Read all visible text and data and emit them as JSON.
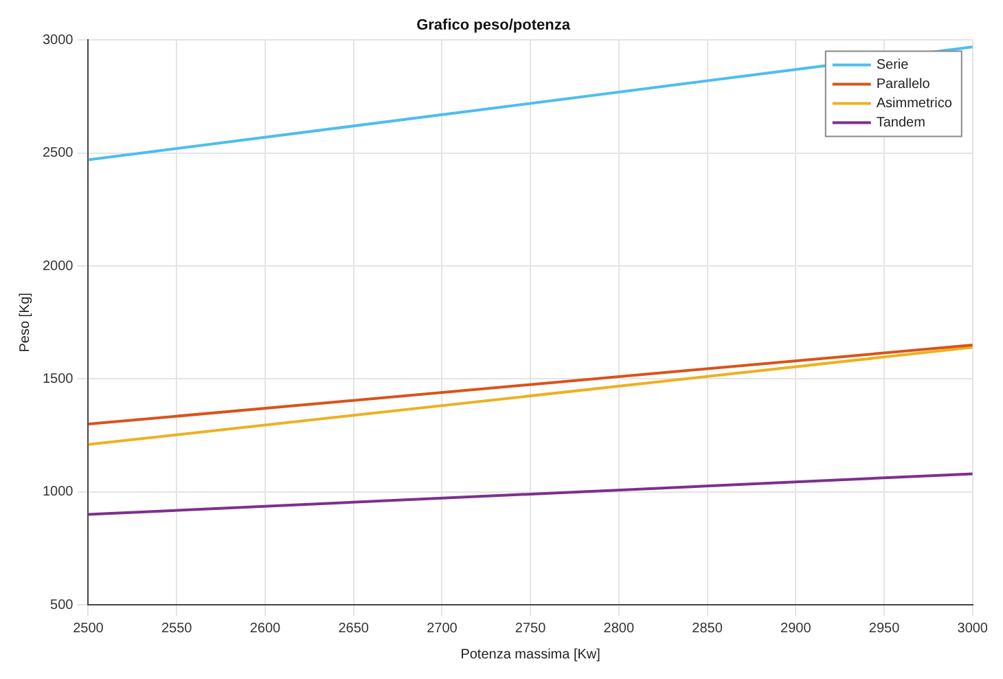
{
  "chart_data": {
    "type": "line",
    "title": "Grafico peso/potenza",
    "xlabel": "Potenza massima [Kw]",
    "ylabel": "Peso [Kg]",
    "x": [
      2500,
      3000
    ],
    "series": [
      {
        "name": "Serie",
        "color": "#4dbeee",
        "values": [
          2470,
          2970
        ]
      },
      {
        "name": "Parallelo",
        "color": "#d95319",
        "values": [
          1300,
          1650
        ]
      },
      {
        "name": "Asimmetrico",
        "color": "#edb120",
        "values": [
          1210,
          1640
        ]
      },
      {
        "name": "Tandem",
        "color": "#7e2f8e",
        "values": [
          900,
          1080
        ]
      }
    ],
    "xlim": [
      2500,
      3000
    ],
    "xticks": [
      2500,
      2550,
      2600,
      2650,
      2700,
      2750,
      2800,
      2850,
      2900,
      2950,
      3000
    ],
    "ylim": [
      500,
      3000
    ],
    "yticks": [
      500,
      1000,
      1500,
      2000,
      2500,
      3000
    ],
    "grid": true,
    "legend": "top right",
    "marker": "none",
    "line_style": "solid"
  }
}
